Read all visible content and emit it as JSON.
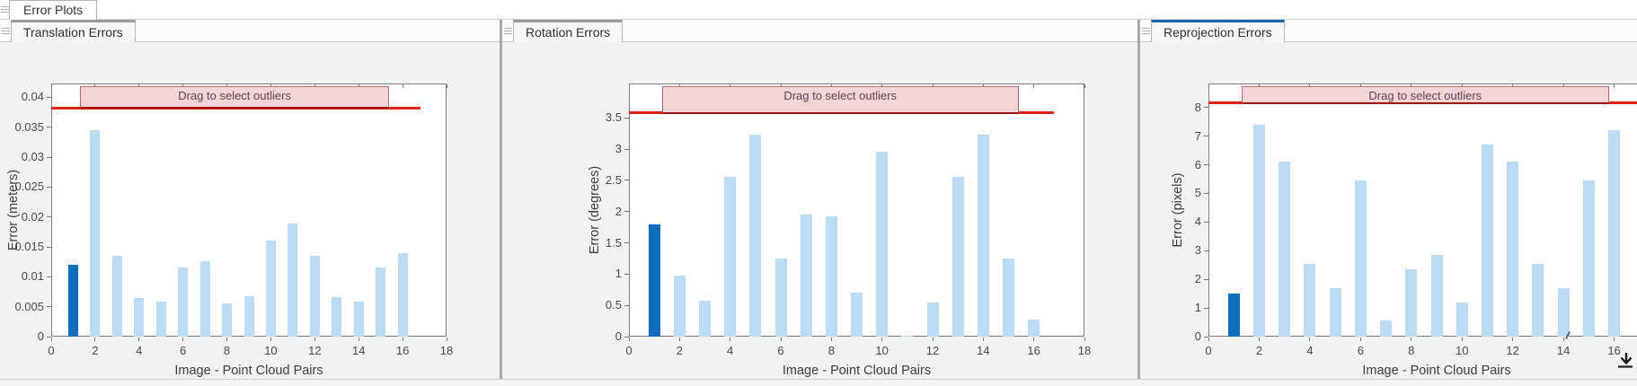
{
  "window": {
    "figure_tab": "Error Plots"
  },
  "panels": [
    {
      "tab": "Translation Errors",
      "accent": "gray"
    },
    {
      "tab": "Rotation Errors",
      "accent": "gray"
    },
    {
      "tab": "Reprojection Errors",
      "accent": "blue"
    }
  ],
  "colors": {
    "bar_light": "#bcdcf5",
    "bar_selected": "#0e6fb8",
    "threshold_line": "#e02318",
    "band_fill": "#f6d4d5",
    "band_border": "#a87070",
    "band_border_bottom": "#9c1410",
    "band_text": "#5c4646",
    "axis": "#7a7a7a",
    "panel_bg": "#f2f2f2",
    "tab_accent_gray": "#9a9a9a",
    "tab_accent_blue": "#1766ad"
  },
  "chart_data": [
    {
      "type": "bar",
      "title": "Translation Errors",
      "xlabel": "Image - Point Cloud Pairs",
      "ylabel": "Error (meters)",
      "x": [
        1,
        2,
        3,
        4,
        5,
        6,
        7,
        8,
        9,
        10,
        11,
        12,
        13,
        14,
        15,
        16
      ],
      "values": [
        0.012,
        0.0345,
        0.0135,
        0.0065,
        0.0058,
        0.0116,
        0.0126,
        0.0055,
        0.0067,
        0.016,
        0.0189,
        0.0135,
        0.0066,
        0.0058,
        0.0116,
        0.014
      ],
      "selected_index": 0,
      "threshold": 0.0382,
      "threshold_x_end": 16.8,
      "band": {
        "label": "Drag to select outliers",
        "x_start": 1.3,
        "x_end": 15.4
      },
      "xlim": [
        0,
        18
      ],
      "ylim": [
        0,
        0.0423
      ],
      "xticks": [
        0,
        2,
        4,
        6,
        8,
        10,
        12,
        14,
        16,
        18
      ],
      "ytick_values": [
        0,
        0.005,
        0.01,
        0.015,
        0.02,
        0.025,
        0.03,
        0.035,
        0.04
      ],
      "ytick_labels": [
        "0",
        "0.005",
        "0.01",
        "0.015",
        "0.02",
        "0.025",
        "0.03",
        "0.035",
        "0.04"
      ]
    },
    {
      "type": "bar",
      "title": "Rotation Errors",
      "xlabel": "Image - Point Cloud Pairs",
      "ylabel": "Error (degrees)",
      "x": [
        1,
        2,
        3,
        4,
        5,
        6,
        7,
        8,
        9,
        10,
        11,
        12,
        13,
        14,
        15,
        16
      ],
      "values": [
        1.8,
        0.98,
        0.57,
        2.56,
        3.23,
        1.25,
        1.95,
        1.92,
        0.7,
        2.96,
        0.02,
        0.55,
        2.56,
        3.23,
        1.25,
        0.27
      ],
      "selected_index": 0,
      "threshold": 3.58,
      "threshold_x_end": 16.8,
      "band": {
        "label": "Drag to select outliers",
        "x_start": 1.3,
        "x_end": 15.4
      },
      "xlim": [
        0,
        18
      ],
      "ylim": [
        0,
        4.05
      ],
      "xticks": [
        0,
        2,
        4,
        6,
        8,
        10,
        12,
        14,
        16,
        18
      ],
      "ytick_values": [
        0,
        0.5,
        1,
        1.5,
        2,
        2.5,
        3,
        3.5
      ],
      "ytick_labels": [
        "0",
        "0.5",
        "1",
        "1.5",
        "2",
        "2.5",
        "3",
        "3.5"
      ]
    },
    {
      "type": "bar",
      "title": "Reprojection Errors",
      "xlabel": "Image - Point Cloud Pairs",
      "ylabel": "Error (pixels)",
      "x": [
        1,
        2,
        3,
        4,
        5,
        6,
        7,
        8,
        9,
        10,
        11,
        12,
        13,
        14,
        15,
        16
      ],
      "values": [
        1.5,
        7.4,
        6.1,
        2.55,
        1.7,
        5.45,
        0.55,
        2.35,
        2.85,
        1.2,
        6.7,
        6.1,
        2.55,
        1.7,
        5.45,
        7.2
      ],
      "selected_index": 0,
      "threshold": 8.16,
      "threshold_x_end": 18,
      "band": {
        "label": "Drag to select outliers",
        "x_start": 1.3,
        "x_end": 15.8
      },
      "xlim": [
        0,
        18
      ],
      "ylim": [
        0,
        8.84
      ],
      "xticks": [
        0,
        2,
        4,
        6,
        8,
        10,
        12,
        14,
        16,
        18
      ],
      "ytick_values": [
        0,
        1,
        2,
        3,
        4,
        5,
        6,
        7,
        8
      ],
      "ytick_labels": [
        "0",
        "1",
        "2",
        "3",
        "4",
        "5",
        "6",
        "7",
        "8"
      ]
    }
  ],
  "bottom_right_icon": "dock-down-arrow"
}
